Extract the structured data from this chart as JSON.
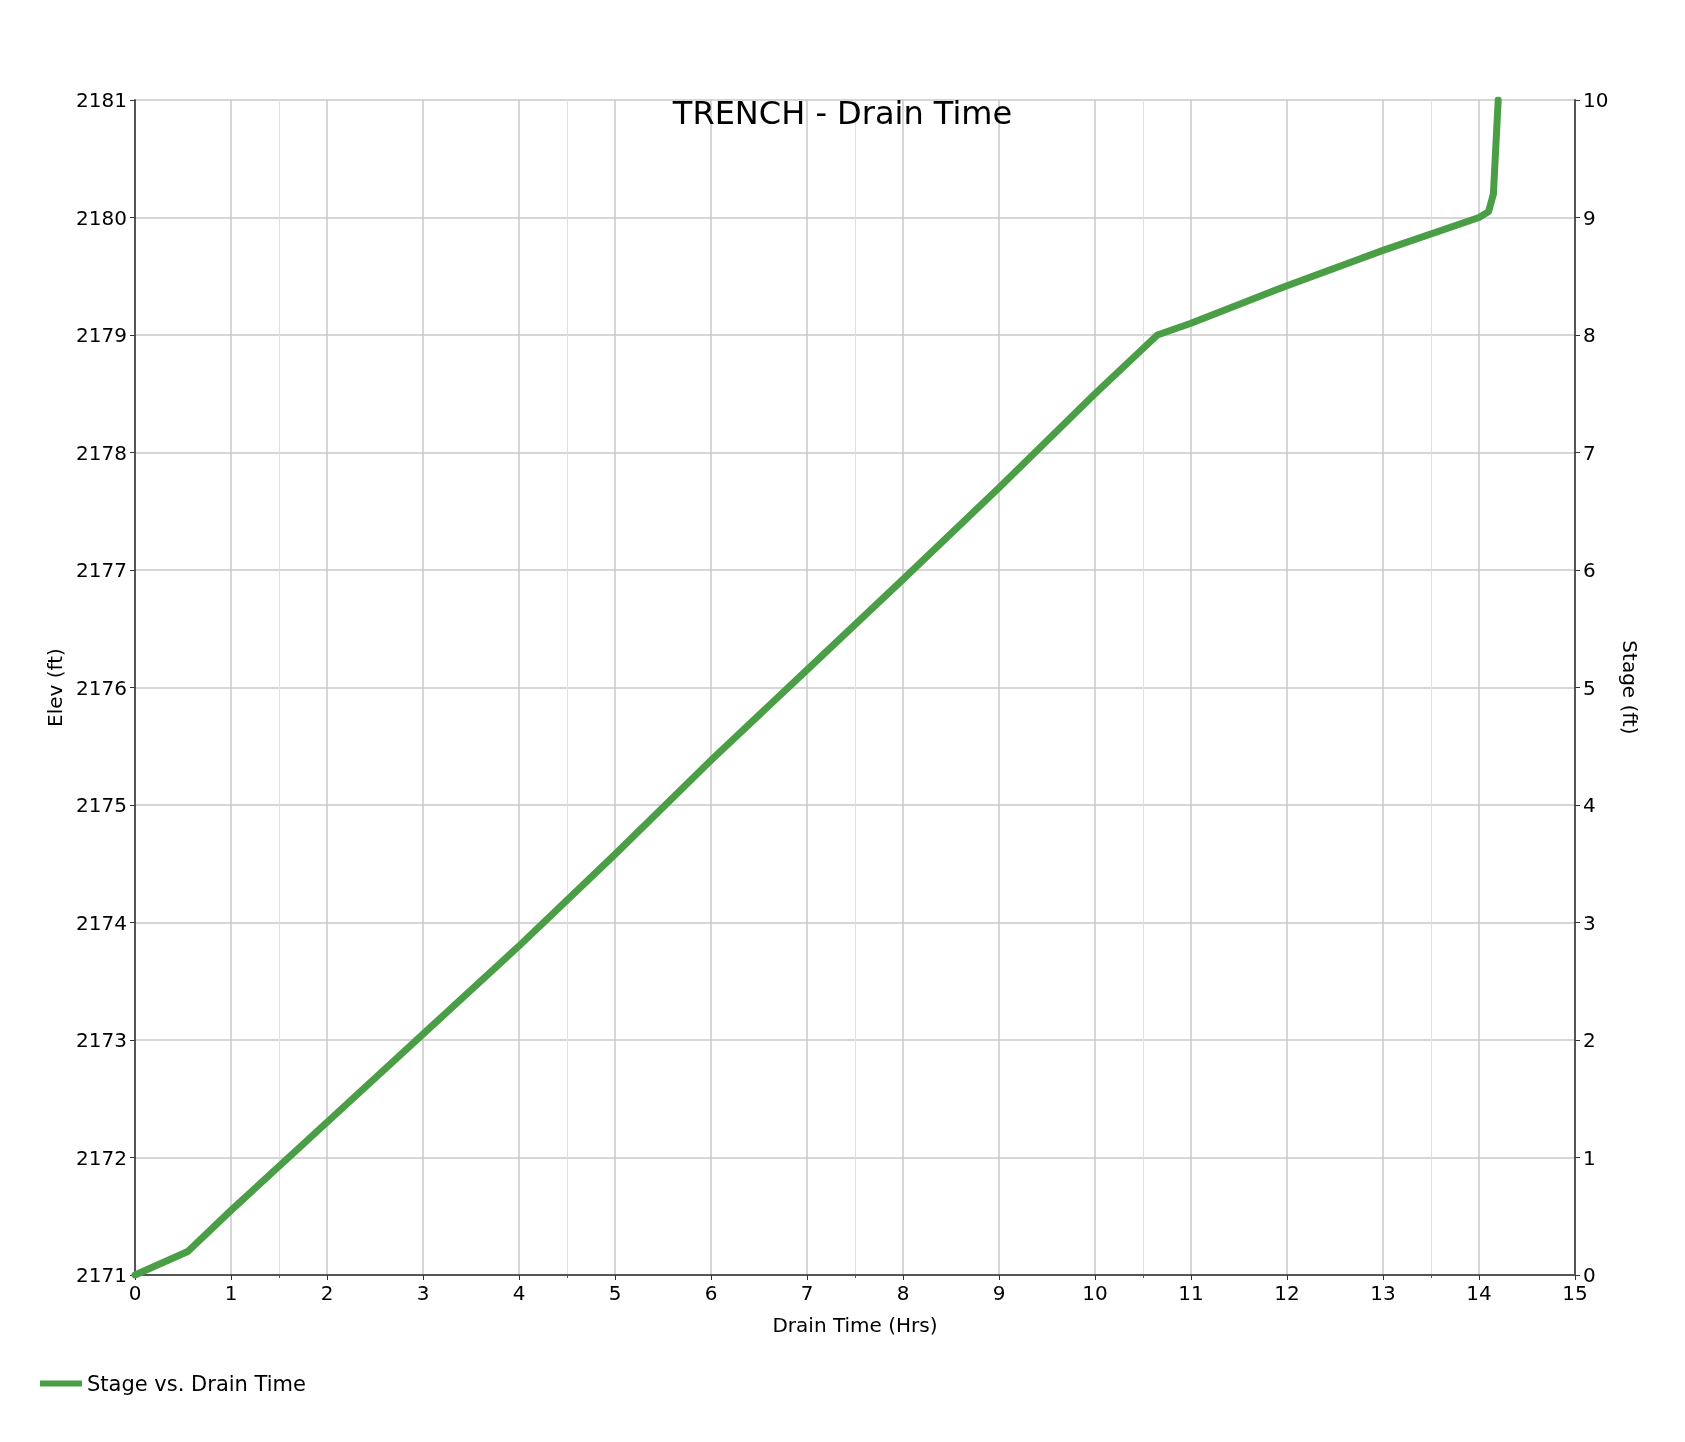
{
  "chart_data": {
    "type": "line",
    "title": "TRENCH - Drain Time",
    "xlabel": "Drain Time (Hrs)",
    "ylabel": "Elev (ft)",
    "y2label": "Stage (ft)",
    "series": [
      {
        "name": "Stage vs. Drain Time",
        "color": "#4a9e45",
        "x": [
          0,
          0.55,
          1,
          2,
          3,
          4,
          5,
          6,
          7,
          8,
          9,
          10,
          10.65,
          11,
          12,
          13,
          14,
          14.1,
          14.15,
          14.2
        ],
        "values": [
          2171,
          2171.2,
          2171.55,
          2172.3,
          2173.05,
          2173.8,
          2174.58,
          2175.38,
          2176.15,
          2176.92,
          2177.7,
          2178.5,
          2179.0,
          2179.1,
          2179.42,
          2179.72,
          2180.0,
          2180.05,
          2180.2,
          2181
        ]
      }
    ],
    "xlim": [
      0,
      15
    ],
    "xticks": [
      0,
      1,
      2,
      3,
      4,
      5,
      6,
      7,
      8,
      9,
      10,
      11,
      12,
      13,
      14,
      15
    ],
    "ylim": [
      2171,
      2181
    ],
    "yticks": [
      2171,
      2172,
      2173,
      2174,
      2175,
      2176,
      2177,
      2178,
      2179,
      2180,
      2181
    ],
    "y2lim": [
      0,
      10
    ],
    "y2ticks": [
      0,
      1,
      2,
      3,
      4,
      5,
      6,
      7,
      8,
      9,
      10
    ],
    "grid": true,
    "legend": "bottom left",
    "marker": "none",
    "line_style": "solid"
  }
}
